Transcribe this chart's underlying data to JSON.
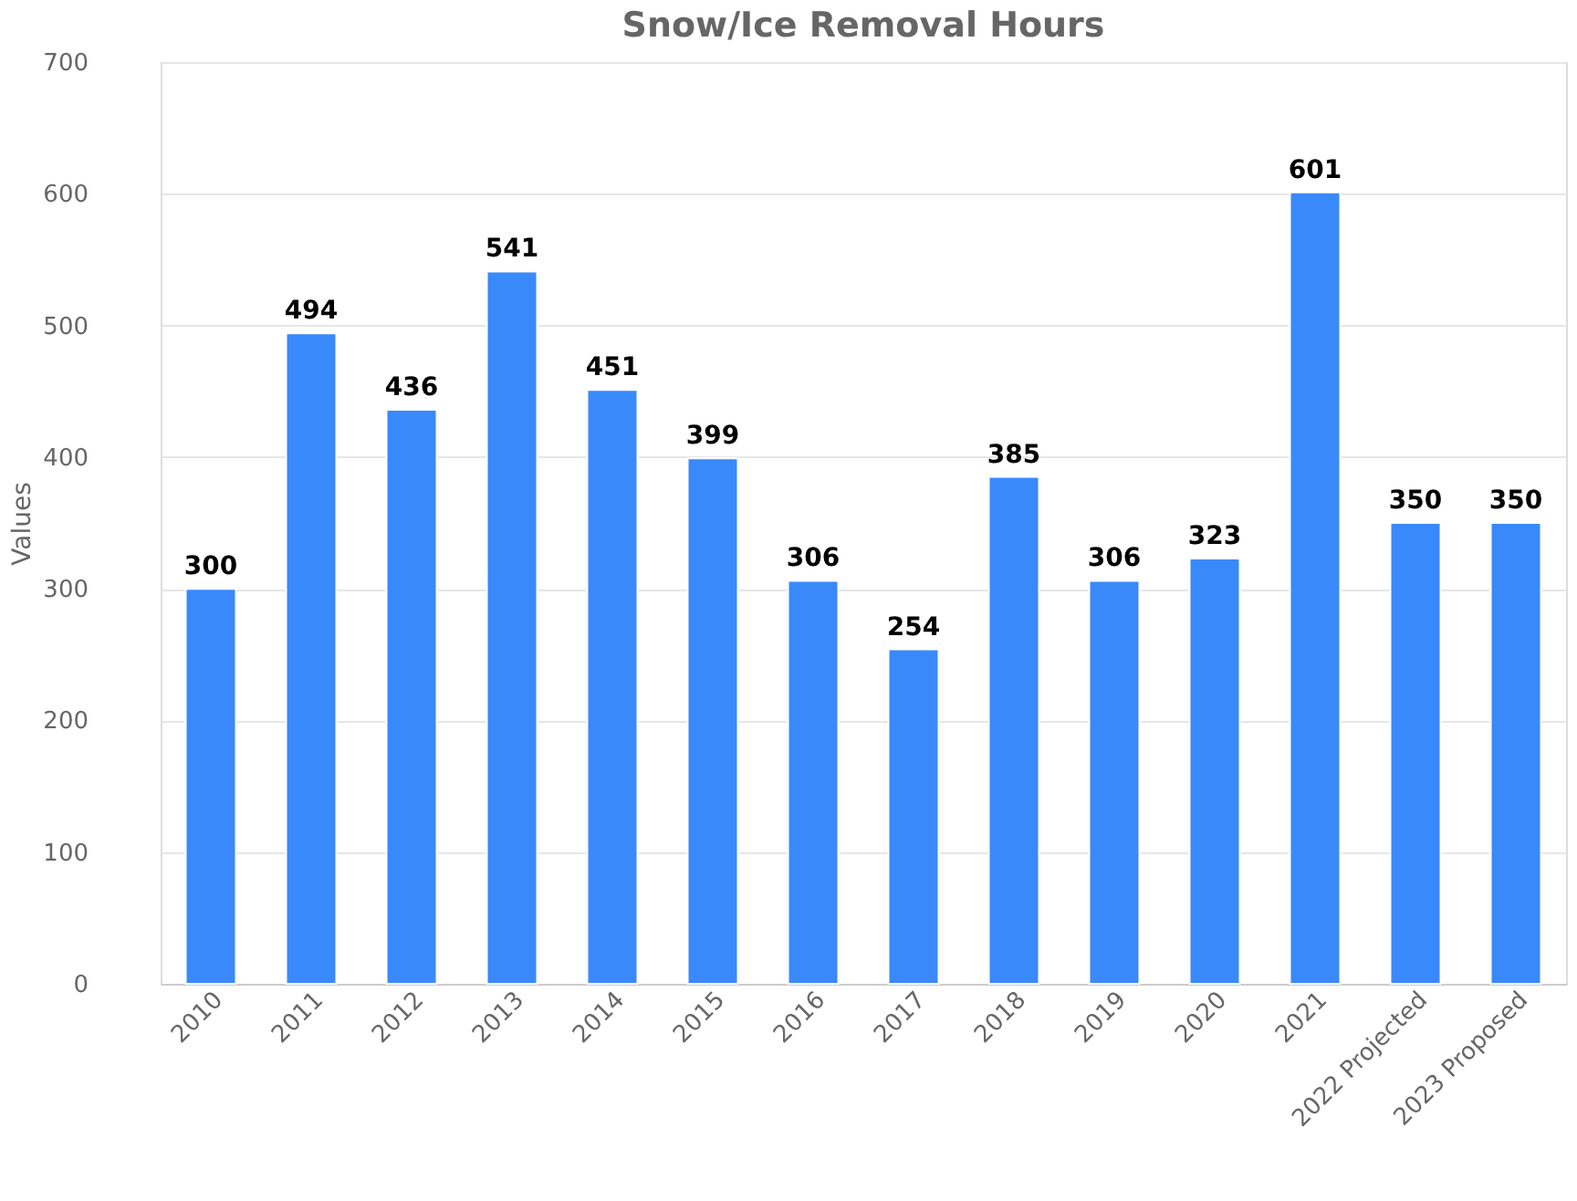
{
  "chart_data": {
    "type": "bar",
    "title": "Snow/Ice Removal Hours",
    "ylabel": "Values",
    "categories": [
      "2010",
      "2011",
      "2012",
      "2013",
      "2014",
      "2015",
      "2016",
      "2017",
      "2018",
      "2019",
      "2020",
      "2021",
      "2022 Projected",
      "2023 Proposed"
    ],
    "values": [
      300,
      494,
      436,
      541,
      451,
      399,
      306,
      254,
      385,
      306,
      323,
      601,
      350,
      350
    ],
    "color": "#3a89fa",
    "ylim": [
      0,
      700
    ],
    "yticks": [
      0,
      100,
      200,
      300,
      400,
      500,
      600,
      700
    ],
    "grid": "y",
    "data_labels": true
  }
}
